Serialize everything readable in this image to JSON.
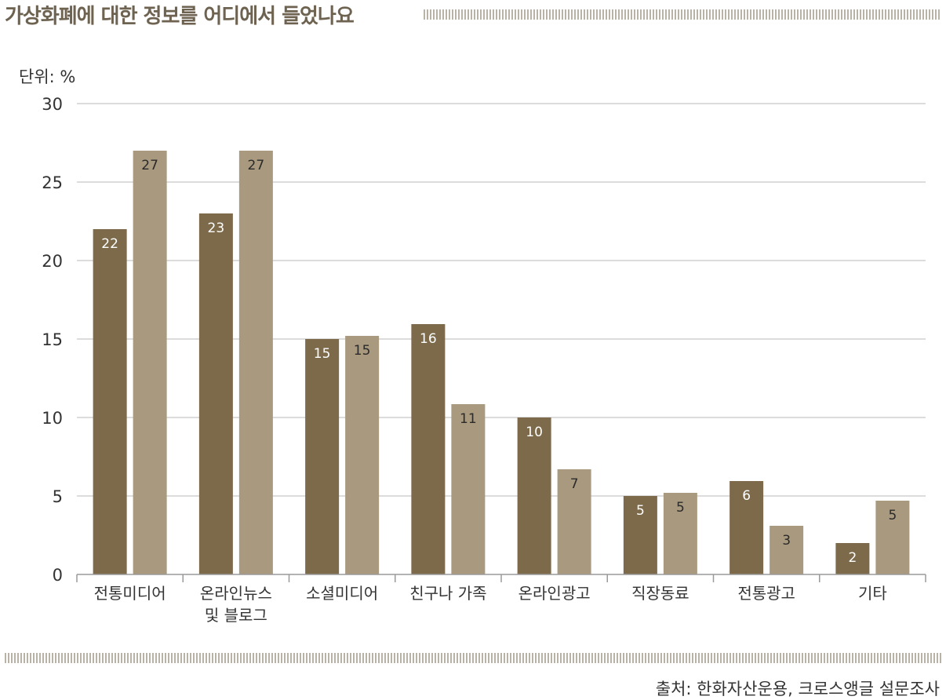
{
  "header": {
    "title": "가상화폐에 대한 정보를 어디에서 들었나요"
  },
  "footer": {
    "source": "출처: 한화자산운용, 크로스앵글 설문조사"
  },
  "chart_data": {
    "type": "bar",
    "unit_label": "단위: %",
    "categories": [
      [
        "전통미디어"
      ],
      [
        "온라인뉴스",
        "및 블로그"
      ],
      [
        "소셜미디어"
      ],
      [
        "친구나 가족"
      ],
      [
        "온라인광고"
      ],
      [
        "직장동료"
      ],
      [
        "전통광고"
      ],
      [
        "기타"
      ]
    ],
    "series": [
      {
        "name": "series-1",
        "color": "#7d6a4b",
        "label_color": "#ffffff",
        "values": [
          22,
          23,
          15,
          16,
          10,
          5,
          6,
          2
        ]
      },
      {
        "name": "series-2",
        "color": "#a99a7f",
        "label_color": "#2a2a2a",
        "values": [
          27,
          27,
          15,
          11,
          7,
          5,
          3,
          5
        ]
      }
    ],
    "plotted_values": [
      [
        22,
        23,
        15,
        15.95,
        10,
        5,
        5.95,
        2
      ],
      [
        27,
        27,
        15.2,
        10.85,
        6.7,
        5.2,
        3.1,
        4.7
      ]
    ],
    "yticks": [
      "0",
      "5",
      "10",
      "15",
      "20",
      "25",
      "30"
    ],
    "ylim": [
      0,
      30
    ],
    "grid": true
  }
}
